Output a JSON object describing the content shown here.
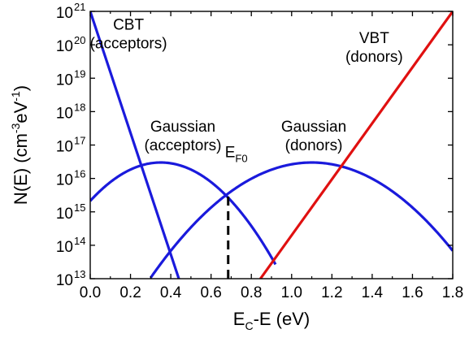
{
  "chart_data": {
    "type": "line",
    "xlabel": {
      "main": "E",
      "sub": "C",
      "rest": "-E (eV)"
    },
    "ylabel": {
      "pre": "N(E) (cm",
      "sup1": "-3",
      "mid": "eV",
      "sup2": "-1",
      "post": ")"
    },
    "xlim": [
      0.0,
      1.8
    ],
    "ylim": [
      10000000000000.0,
      1e+21
    ],
    "yscale": "log",
    "grid": false,
    "x_ticks": [
      0.0,
      0.2,
      0.4,
      0.6,
      0.8,
      1.0,
      1.2,
      1.4,
      1.6,
      1.8
    ],
    "x_tick_labels": [
      "0.0",
      "0.2",
      "0.4",
      "0.6",
      "0.8",
      "1.0",
      "1.2",
      "1.4",
      "1.6",
      "1.8"
    ],
    "y_ticks_exp": [
      13,
      14,
      15,
      16,
      17,
      18,
      19,
      20,
      21
    ],
    "y_tick_base": "10",
    "y_tick_exps": [
      "13",
      "14",
      "15",
      "16",
      "17",
      "18",
      "19",
      "20",
      "21"
    ],
    "series": [
      {
        "key": "cbt",
        "color": "#1a1adc",
        "points": [
          [
            0.0,
            1e+21
          ],
          [
            0.44,
            10000000000000.0
          ]
        ]
      },
      {
        "key": "gauss_acc",
        "color": "#1a1adc",
        "kind": "gaussian",
        "peak_x": 0.35,
        "peak_y": 3e+16,
        "x_range": [
          0.0,
          0.92
        ],
        "log_drop_at_x0": 1.15
      },
      {
        "key": "gauss_don",
        "color": "#1a1adc",
        "kind": "gaussian",
        "peak_x": 1.1,
        "peak_y": 3e+16,
        "x_range": [
          0.3,
          1.8
        ],
        "log_drop_at_x0": 3.45
      },
      {
        "key": "vbt",
        "color": "#e01010",
        "points": [
          [
            0.845,
            10000000000000.0
          ],
          [
            1.8,
            1e+21
          ]
        ]
      }
    ],
    "fermi_level": {
      "x": 0.685,
      "y_range": [
        10000000000000.0,
        3500000000000000.0
      ],
      "label_main": "E",
      "label_sub": "F0"
    },
    "annotations": [
      {
        "key": "cbt",
        "lines": [
          "CBT",
          "(acceptors)"
        ],
        "x": 0.19,
        "y_exp": 20.45
      },
      {
        "key": "gauss_acc",
        "lines": [
          "Gaussian",
          "(acceptors)"
        ],
        "x": 0.46,
        "y_exp": 17.4
      },
      {
        "key": "gauss_don",
        "lines": [
          "Gaussian",
          "(donors)"
        ],
        "x": 1.11,
        "y_exp": 17.4
      },
      {
        "key": "vbt",
        "lines": [
          "VBT",
          "(donors)"
        ],
        "x": 1.41,
        "y_exp": 20.05
      }
    ]
  }
}
